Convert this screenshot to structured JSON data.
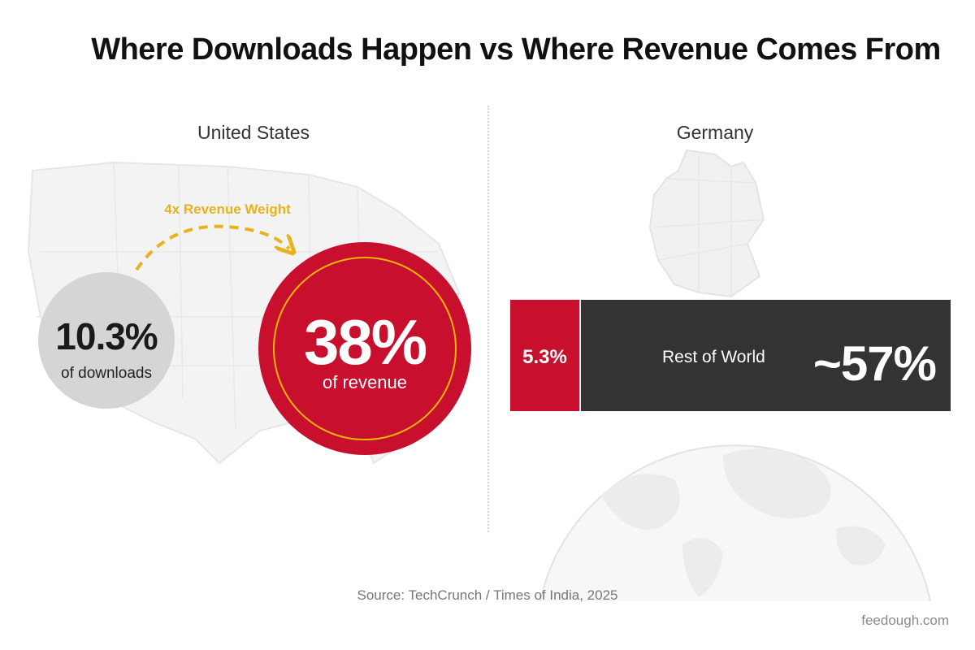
{
  "title": "Where Downloads Happen vs Where Revenue Comes From",
  "panels": {
    "us": {
      "label": "United States",
      "downloads_value": "10.3%",
      "downloads_caption": "of downloads",
      "revenue_value": "38%",
      "revenue_caption": "of revenue",
      "weight_label": "4x Revenue Weight"
    },
    "germany": {
      "label": "Germany",
      "bar_value": "5.3%",
      "rest_label": "Rest of World",
      "rest_value": "~57%"
    }
  },
  "source": "Source: TechCrunch / Times of India, 2025",
  "watermark": "feedough.com",
  "colors": {
    "accent_red": "#c8102e",
    "accent_gold": "#e8b21c",
    "neutral_gray": "#d5d5d5",
    "dark_bar": "#333333"
  },
  "chart_data": [
    {
      "type": "bubble",
      "title": "United States",
      "series": [
        {
          "name": "of downloads",
          "value": 10.3
        },
        {
          "name": "of revenue",
          "value": 38
        }
      ],
      "annotation": "4x Revenue Weight"
    },
    {
      "type": "stacked-bar",
      "title": "Germany",
      "categories": [
        "Germany",
        "Rest of World"
      ],
      "values": [
        5.3,
        57
      ]
    }
  ]
}
